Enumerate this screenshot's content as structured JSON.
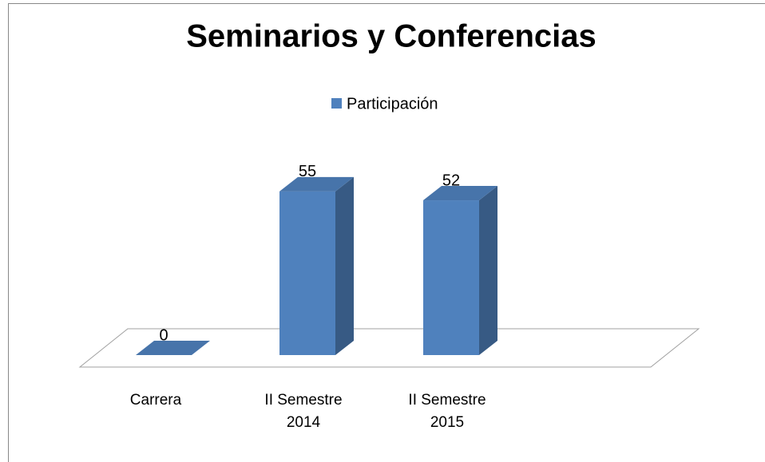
{
  "chart_data": {
    "type": "bar3d",
    "title": "Seminarios y Conferencias",
    "categories": [
      "Carrera",
      "II Semestre 2014",
      "II Semestre 2015"
    ],
    "series": [
      {
        "name": "Participación",
        "color": "#4f81bd",
        "values": [
          0,
          55,
          52
        ]
      }
    ],
    "legend": "top"
  }
}
